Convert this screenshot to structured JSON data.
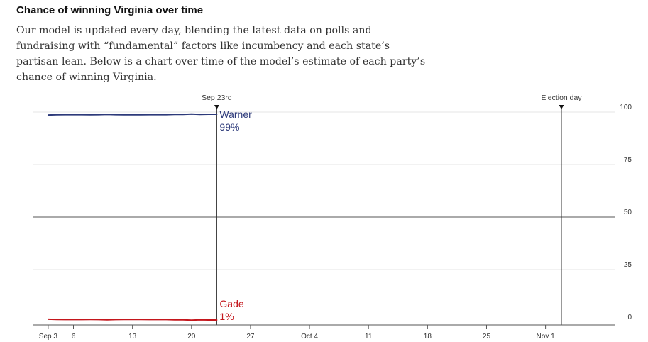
{
  "header": {
    "title": "Chance of winning Virginia over time",
    "subtitle": "Our model is updated every day, blending the latest data on polls and fundraising with “fundamental” factors like incumbency and each state’s partisan lean. Below is a chart over time of the model’s estimate of each party’s chance of winning Virginia."
  },
  "chart_data": {
    "type": "line",
    "title": "Chance of winning Virginia over time",
    "xlabel": "",
    "ylabel": "",
    "x_range": [
      "2018-09-02",
      "2018-11-06"
    ],
    "ylim": [
      0,
      100
    ],
    "y_ticks": [
      0,
      25,
      50,
      75,
      100
    ],
    "y_tick_labels": [
      "0",
      "25",
      "50",
      "75",
      "100"
    ],
    "x_ticks": [
      "2018-09-03",
      "2018-09-06",
      "2018-09-13",
      "2018-09-20",
      "2018-09-27",
      "2018-10-04",
      "2018-10-11",
      "2018-10-18",
      "2018-10-25",
      "2018-11-01"
    ],
    "x_tick_labels": [
      "Sep 3",
      "6",
      "13",
      "20",
      "27",
      "Oct 4",
      "11",
      "18",
      "25",
      "Nov 1"
    ],
    "grid": true,
    "markers": [
      {
        "date": "2018-09-23",
        "label": "Sep 23rd"
      },
      {
        "date": "2018-11-06",
        "label": "Election day"
      }
    ],
    "series": [
      {
        "name": "Warner",
        "color": "#2d3a7a",
        "current_label": "99%",
        "x": [
          "2018-09-03",
          "2018-09-04",
          "2018-09-05",
          "2018-09-06",
          "2018-09-07",
          "2018-09-08",
          "2018-09-09",
          "2018-09-10",
          "2018-09-11",
          "2018-09-12",
          "2018-09-13",
          "2018-09-14",
          "2018-09-15",
          "2018-09-16",
          "2018-09-17",
          "2018-09-18",
          "2018-09-19",
          "2018-09-20",
          "2018-09-21",
          "2018-09-22",
          "2018-09-23"
        ],
        "values": [
          98.6,
          98.7,
          98.8,
          98.8,
          98.8,
          98.7,
          98.8,
          98.9,
          98.8,
          98.7,
          98.7,
          98.7,
          98.8,
          98.8,
          98.8,
          98.9,
          98.9,
          99.1,
          98.9,
          99.0,
          99.0
        ]
      },
      {
        "name": "Gade",
        "color": "#c4161c",
        "current_label": "1%",
        "x": [
          "2018-09-03",
          "2018-09-04",
          "2018-09-05",
          "2018-09-06",
          "2018-09-07",
          "2018-09-08",
          "2018-09-09",
          "2018-09-10",
          "2018-09-11",
          "2018-09-12",
          "2018-09-13",
          "2018-09-14",
          "2018-09-15",
          "2018-09-16",
          "2018-09-17",
          "2018-09-18",
          "2018-09-19",
          "2018-09-20",
          "2018-09-21",
          "2018-09-22",
          "2018-09-23"
        ],
        "values": [
          1.4,
          1.3,
          1.2,
          1.2,
          1.2,
          1.3,
          1.2,
          1.1,
          1.2,
          1.3,
          1.3,
          1.3,
          1.2,
          1.2,
          1.2,
          1.1,
          1.1,
          0.9,
          1.1,
          1.0,
          1.0
        ]
      }
    ]
  }
}
